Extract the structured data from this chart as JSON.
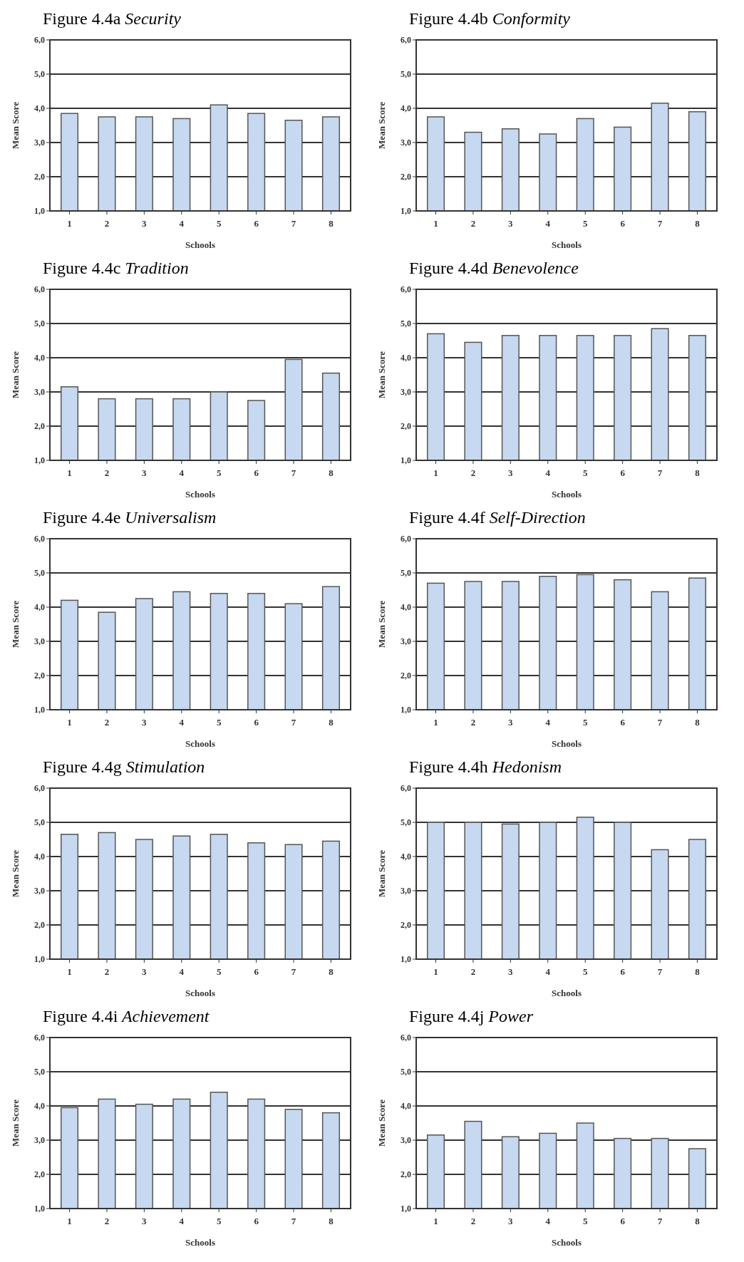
{
  "chart_data": [
    {
      "type": "bar",
      "title": "Figure 4.4a Security",
      "xlabel": "Schools",
      "ylabel": "Mean Score",
      "categories": [
        "1",
        "2",
        "3",
        "4",
        "5",
        "6",
        "7",
        "8"
      ],
      "values": [
        3.85,
        3.75,
        3.75,
        3.7,
        4.1,
        3.85,
        3.65,
        3.75
      ],
      "color": "#c6d9f0",
      "ylim": [
        1,
        6
      ],
      "yticks": [
        {
          "value": 1,
          "label": "1,0"
        },
        {
          "value": 2,
          "label": "2,0"
        },
        {
          "value": 3,
          "label": "3,0"
        },
        {
          "value": 4,
          "label": "4,0"
        },
        {
          "value": 5,
          "label": "5,0"
        },
        {
          "value": 6,
          "label": "6,0"
        }
      ],
      "grid": "y"
    },
    {
      "type": "bar",
      "title": "Figure 4.4b Conformity",
      "xlabel": "Schools",
      "ylabel": "Mean Score",
      "categories": [
        "1",
        "2",
        "3",
        "4",
        "5",
        "6",
        "7",
        "8"
      ],
      "values": [
        3.75,
        3.3,
        3.4,
        3.25,
        3.7,
        3.45,
        4.15,
        3.9
      ],
      "color": "#c6d9f0",
      "ylim": [
        1,
        6
      ],
      "yticks": [
        {
          "value": 1,
          "label": "1,0"
        },
        {
          "value": 2,
          "label": "2,0"
        },
        {
          "value": 3,
          "label": "3,0"
        },
        {
          "value": 4,
          "label": "4,0"
        },
        {
          "value": 5,
          "label": "5,0"
        },
        {
          "value": 6,
          "label": "6,0"
        }
      ],
      "grid": "y"
    },
    {
      "type": "bar",
      "title": "Figure 4.4c Tradition",
      "xlabel": "Schools",
      "ylabel": "Mean Score",
      "categories": [
        "1",
        "2",
        "3",
        "4",
        "5",
        "6",
        "7",
        "8"
      ],
      "values": [
        3.15,
        2.8,
        2.8,
        2.8,
        3.0,
        2.75,
        3.95,
        3.55
      ],
      "color": "#c6d9f0",
      "ylim": [
        1,
        6
      ],
      "yticks": [
        {
          "value": 1,
          "label": "1,0"
        },
        {
          "value": 2,
          "label": "2,0"
        },
        {
          "value": 3,
          "label": "3,0"
        },
        {
          "value": 4,
          "label": "4,0"
        },
        {
          "value": 5,
          "label": "5,0"
        },
        {
          "value": 6,
          "label": "6,0"
        }
      ],
      "grid": "y"
    },
    {
      "type": "bar",
      "title": "Figure 4.4d Benevolence",
      "xlabel": "Schools",
      "ylabel": "Mean Score",
      "categories": [
        "1",
        "2",
        "3",
        "4",
        "5",
        "6",
        "7",
        "8"
      ],
      "values": [
        4.7,
        4.45,
        4.65,
        4.65,
        4.65,
        4.65,
        4.85,
        4.65
      ],
      "color": "#c6d9f0",
      "ylim": [
        1,
        6
      ],
      "yticks": [
        {
          "value": 1,
          "label": "1,0"
        },
        {
          "value": 2,
          "label": "2,0"
        },
        {
          "value": 3,
          "label": "3,0"
        },
        {
          "value": 4,
          "label": "4,0"
        },
        {
          "value": 5,
          "label": "5,0"
        },
        {
          "value": 6,
          "label": "6,0"
        }
      ],
      "grid": "y"
    },
    {
      "type": "bar",
      "title": "Figure 4.4e Universalism",
      "xlabel": "Schools",
      "ylabel": "Mean Score",
      "categories": [
        "1",
        "2",
        "3",
        "4",
        "5",
        "6",
        "7",
        "8"
      ],
      "values": [
        4.2,
        3.85,
        4.25,
        4.45,
        4.4,
        4.4,
        4.1,
        4.6
      ],
      "color": "#c6d9f0",
      "ylim": [
        1,
        6
      ],
      "yticks": [
        {
          "value": 1,
          "label": "1,0"
        },
        {
          "value": 2,
          "label": "2,0"
        },
        {
          "value": 3,
          "label": "3,0"
        },
        {
          "value": 4,
          "label": "4,0"
        },
        {
          "value": 5,
          "label": "5,0"
        },
        {
          "value": 6,
          "label": "6,0"
        }
      ],
      "grid": "y"
    },
    {
      "type": "bar",
      "title": "Figure 4.4f Self-Direction",
      "xlabel": "Schools",
      "ylabel": "Mean Score",
      "categories": [
        "1",
        "2",
        "3",
        "4",
        "5",
        "6",
        "7",
        "8"
      ],
      "values": [
        4.7,
        4.75,
        4.75,
        4.9,
        4.95,
        4.8,
        4.45,
        4.85
      ],
      "color": "#c6d9f0",
      "ylim": [
        1,
        6
      ],
      "yticks": [
        {
          "value": 1,
          "label": "1,0"
        },
        {
          "value": 2,
          "label": "2,0"
        },
        {
          "value": 3,
          "label": "3,0"
        },
        {
          "value": 4,
          "label": "4,0"
        },
        {
          "value": 5,
          "label": "5,0"
        },
        {
          "value": 6,
          "label": "6,0"
        }
      ],
      "grid": "y"
    },
    {
      "type": "bar",
      "title": "Figure 4.4g Stimulation",
      "xlabel": "Schools",
      "ylabel": "Mean Score",
      "categories": [
        "1",
        "2",
        "3",
        "4",
        "5",
        "6",
        "7",
        "8"
      ],
      "values": [
        4.65,
        4.7,
        4.5,
        4.6,
        4.65,
        4.4,
        4.35,
        4.45
      ],
      "color": "#c6d9f0",
      "ylim": [
        1,
        6
      ],
      "yticks": [
        {
          "value": 1,
          "label": "1,0"
        },
        {
          "value": 2,
          "label": "2,0"
        },
        {
          "value": 3,
          "label": "3,0"
        },
        {
          "value": 4,
          "label": "4,0"
        },
        {
          "value": 5,
          "label": "5,0"
        },
        {
          "value": 6,
          "label": "6,0"
        }
      ],
      "grid": "y"
    },
    {
      "type": "bar",
      "title": "Figure 4.4h Hedonism",
      "xlabel": "Schools",
      "ylabel": "Mean Score",
      "categories": [
        "1",
        "2",
        "3",
        "4",
        "5",
        "6",
        "7",
        "8"
      ],
      "values": [
        5.0,
        5.0,
        4.95,
        5.0,
        5.15,
        5.0,
        4.2,
        4.5
      ],
      "color": "#c6d9f0",
      "ylim": [
        1,
        6
      ],
      "yticks": [
        {
          "value": 1,
          "label": "1,0"
        },
        {
          "value": 2,
          "label": "2,0"
        },
        {
          "value": 3,
          "label": "3,0"
        },
        {
          "value": 4,
          "label": "4,0"
        },
        {
          "value": 5,
          "label": "5,0"
        },
        {
          "value": 6,
          "label": "6,0"
        }
      ],
      "grid": "y"
    },
    {
      "type": "bar",
      "title": "Figure 4.4i Achievement",
      "xlabel": "Schools",
      "ylabel": "Mean Score",
      "categories": [
        "1",
        "2",
        "3",
        "4",
        "5",
        "6",
        "7",
        "8"
      ],
      "values": [
        3.95,
        4.2,
        4.05,
        4.2,
        4.4,
        4.2,
        3.9,
        3.8
      ],
      "color": "#c6d9f0",
      "ylim": [
        1,
        6
      ],
      "yticks": [
        {
          "value": 1,
          "label": "1,0"
        },
        {
          "value": 2,
          "label": "2,0"
        },
        {
          "value": 3,
          "label": "3,0"
        },
        {
          "value": 4,
          "label": "4,0"
        },
        {
          "value": 5,
          "label": "5,0"
        },
        {
          "value": 6,
          "label": "6,0"
        }
      ],
      "grid": "y"
    },
    {
      "type": "bar",
      "title": "Figure 4.4j Power",
      "xlabel": "Schools",
      "ylabel": "Mean Score",
      "categories": [
        "1",
        "2",
        "3",
        "4",
        "5",
        "6",
        "7",
        "8"
      ],
      "values": [
        3.15,
        3.55,
        3.1,
        3.2,
        3.5,
        3.05,
        3.05,
        2.75
      ],
      "color": "#c6d9f0",
      "ylim": [
        1,
        6
      ],
      "yticks": [
        {
          "value": 1,
          "label": "1,0"
        },
        {
          "value": 2,
          "label": "2,0"
        },
        {
          "value": 3,
          "label": "3,0"
        },
        {
          "value": 4,
          "label": "4,0"
        },
        {
          "value": 5,
          "label": "5,0"
        },
        {
          "value": 6,
          "label": "6,0"
        }
      ],
      "grid": "y"
    }
  ]
}
